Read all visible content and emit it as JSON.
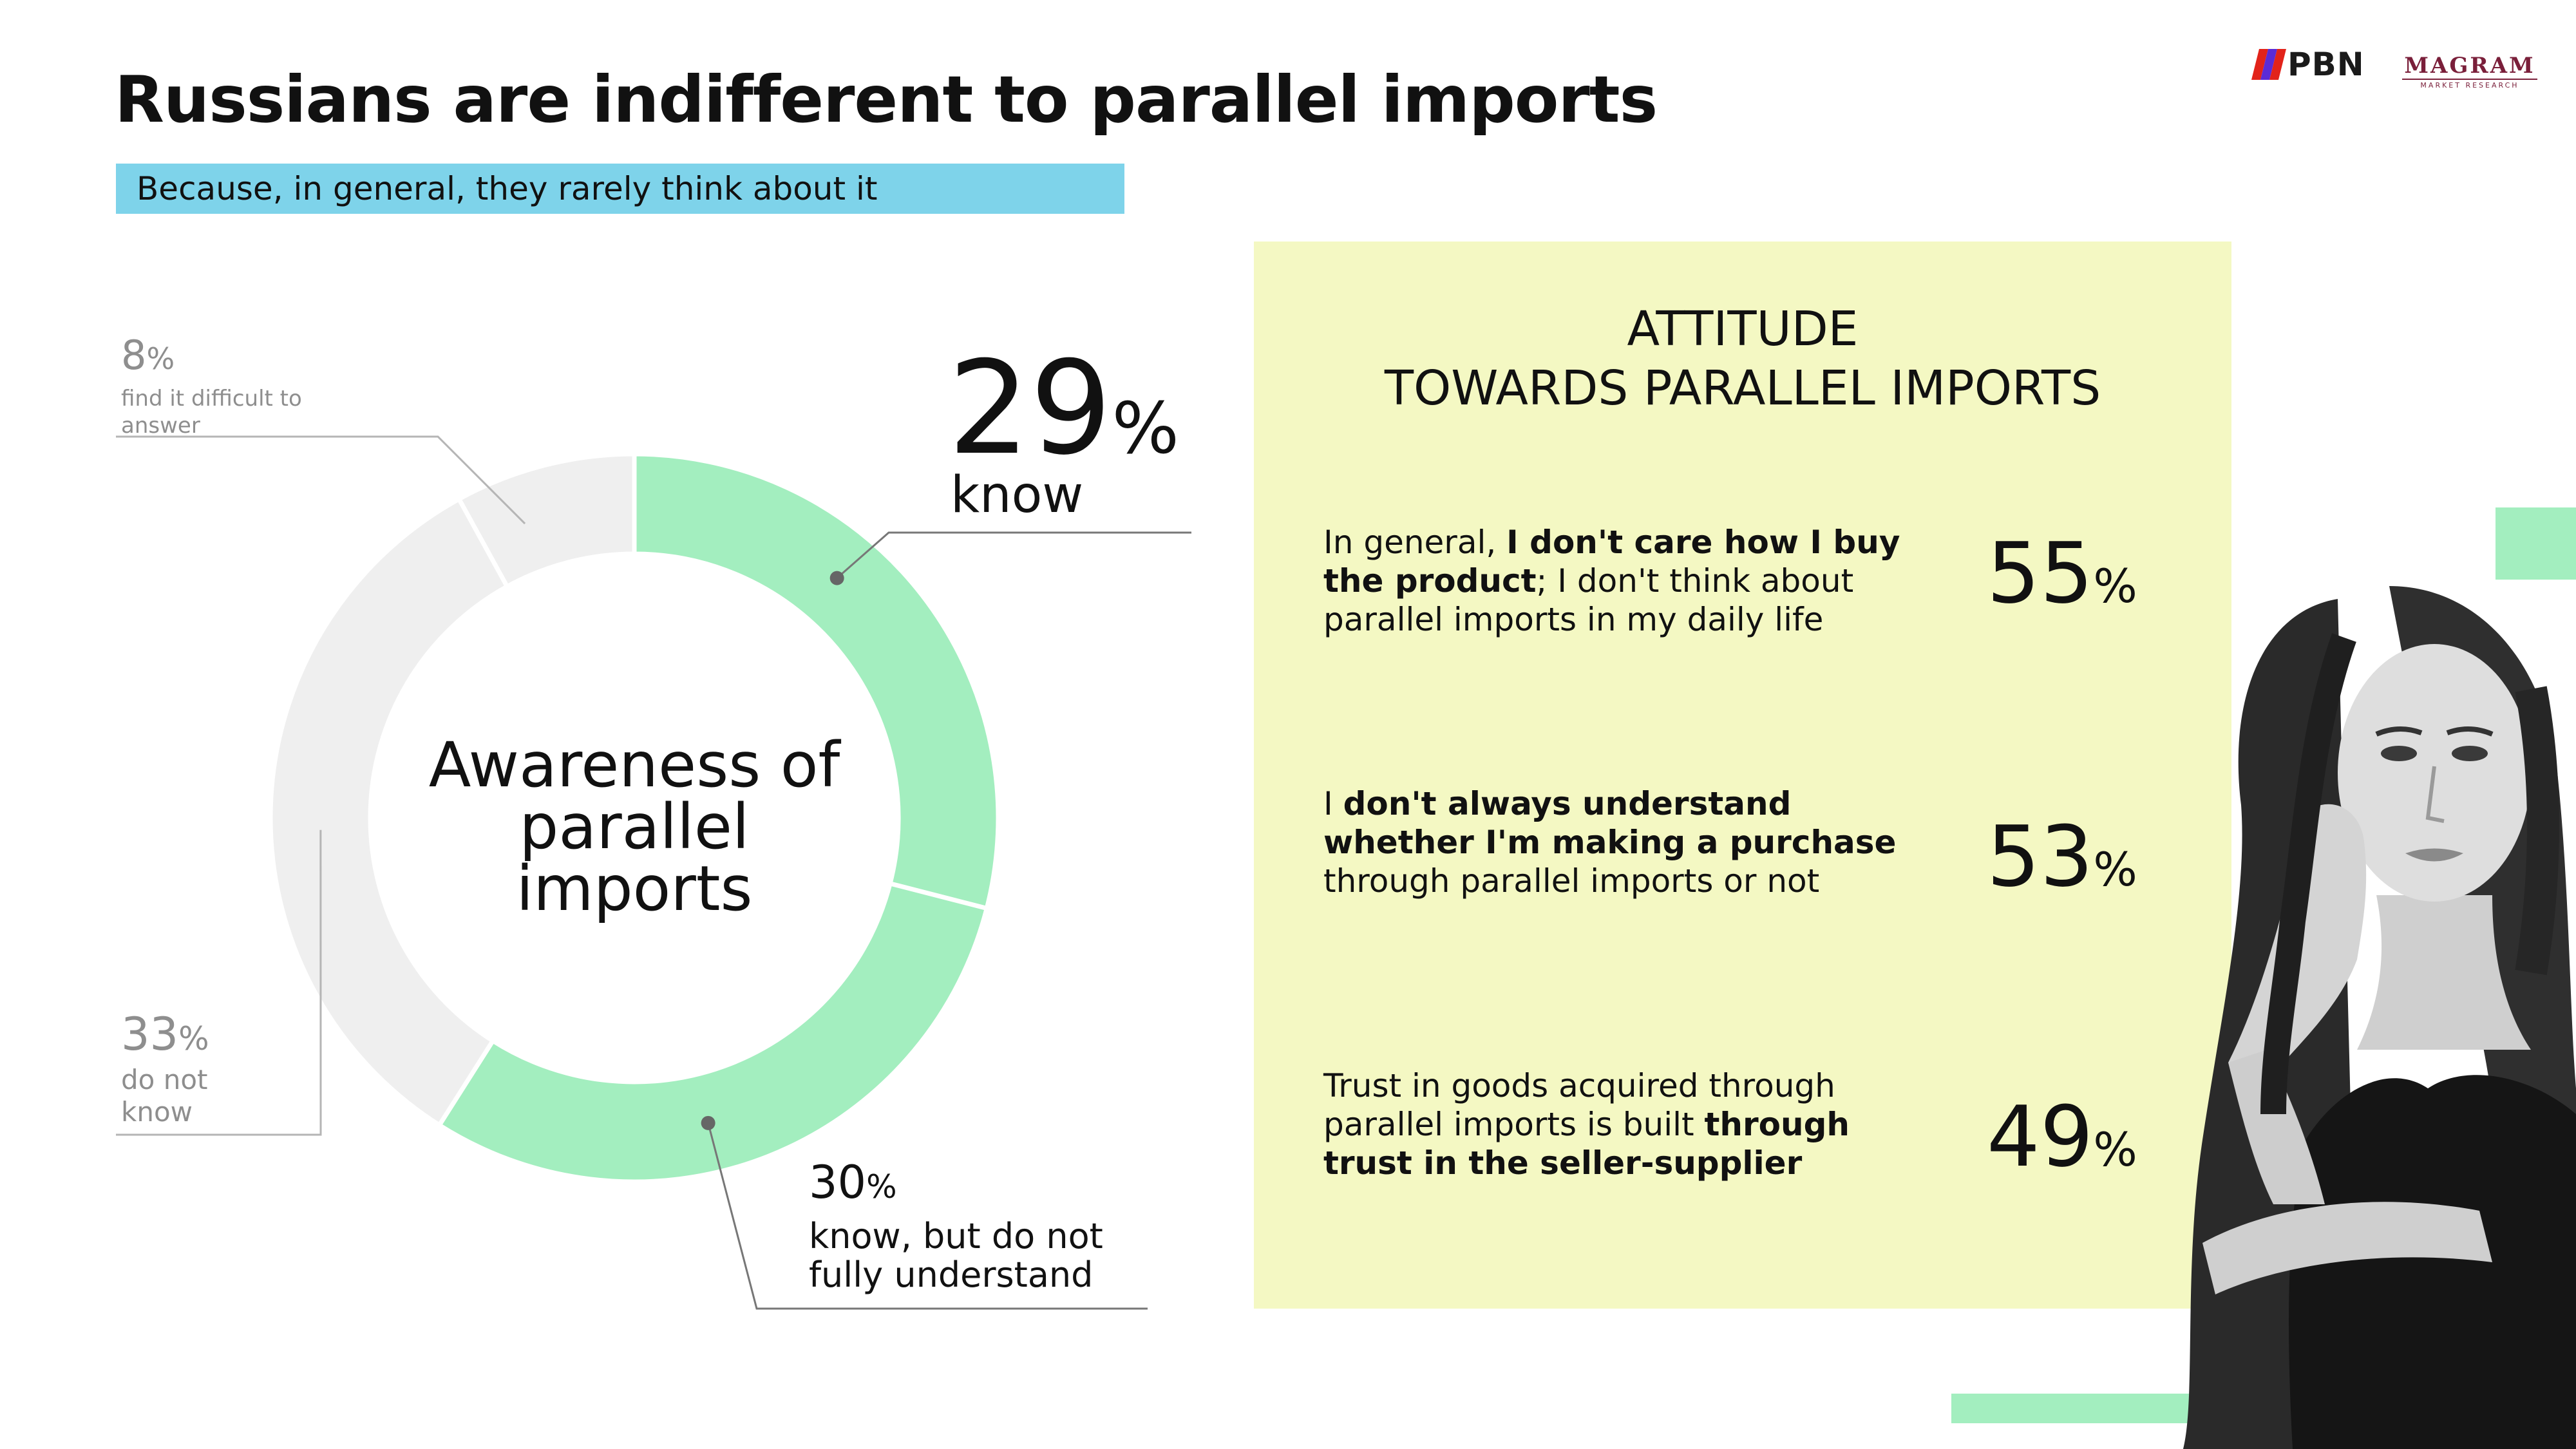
{
  "header": {
    "title": "Russians are indifferent to parallel imports",
    "subtitle": "Because, in general, they rarely think about it"
  },
  "logos": {
    "pbn": "PBN",
    "magram": "MAGRAM",
    "magram_sub": "MARKET RESEARCH"
  },
  "colors": {
    "accent_blue": "#7ed3ea",
    "donut_green": "#a3eebf",
    "donut_gray": "#efefef",
    "panel_yellow": "#f4f8c3",
    "pbn_red": "#e2231a",
    "pbn_purple": "#5b2bd6",
    "magram": "#7a1f3a"
  },
  "chart_data": {
    "type": "pie",
    "donut": true,
    "center_label": "Awareness of parallel imports",
    "categories": [
      "know",
      "know, but do not fully understand",
      "do not know",
      "find it difficult to answer"
    ],
    "values": [
      29,
      30,
      33,
      8
    ],
    "colors": [
      "#a3eebf",
      "#a3eebf",
      "#efefef",
      "#efefef"
    ],
    "percent_symbol": "%"
  },
  "attitude": {
    "title_line1": "ATTITUDE",
    "title_line2": "TOWARDS PARALLEL IMPORTS",
    "items": [
      {
        "pre": "In general, ",
        "bold": "I don't care how I buy the product",
        "post": "; I don't think about parallel imports in my daily life",
        "value": "55"
      },
      {
        "pre": "I ",
        "bold": "don't always understand whether I'm making a purchase",
        "post": " through parallel imports or not",
        "value": "53"
      },
      {
        "pre": "Trust in goods acquired through parallel imports is built ",
        "bold": "through trust in the seller-supplier",
        "post": "",
        "value": "49"
      }
    ]
  }
}
